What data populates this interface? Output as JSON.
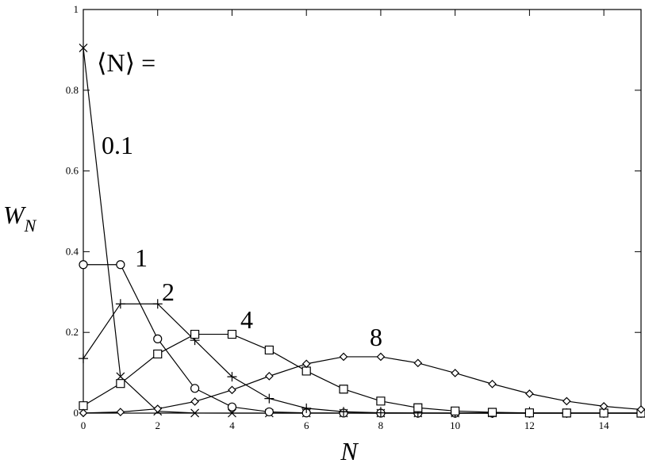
{
  "chart_data": {
    "type": "line",
    "ylabel": "W",
    "ylabel_sub": "N",
    "xlabel": "N",
    "annotation": "⟨N⟩ =",
    "x": [
      0,
      1,
      2,
      3,
      4,
      5,
      6,
      7,
      8,
      9,
      10,
      11,
      12,
      13,
      14,
      15
    ],
    "series": [
      {
        "name": "0.1",
        "color": "#000000",
        "marker": "cross",
        "values": [
          0.9048,
          0.0905,
          0.0045,
          0.0002,
          0,
          0,
          0,
          0,
          0,
          0,
          0,
          0,
          0,
          0,
          0,
          0
        ]
      },
      {
        "name": "1",
        "color": "#000000",
        "marker": "circle",
        "values": [
          0.3679,
          0.3679,
          0.1839,
          0.0613,
          0.0153,
          0.0031,
          0.0005,
          0.0001,
          0,
          0,
          0,
          0,
          0,
          0,
          0,
          0
        ]
      },
      {
        "name": "2",
        "color": "#000000",
        "marker": "plus",
        "values": [
          0.1353,
          0.2707,
          0.2707,
          0.1804,
          0.0902,
          0.0361,
          0.012,
          0.0034,
          0.0009,
          0.0002,
          0,
          0,
          0,
          0,
          0,
          0
        ]
      },
      {
        "name": "4",
        "color": "#000000",
        "marker": "square",
        "values": [
          0.0183,
          0.0733,
          0.1465,
          0.1954,
          0.1954,
          0.1563,
          0.1042,
          0.0595,
          0.0298,
          0.0132,
          0.0053,
          0.0019,
          0.0006,
          0.0002,
          0.0001,
          0
        ]
      },
      {
        "name": "8",
        "color": "#000000",
        "marker": "diamond",
        "values": [
          0.0003,
          0.0027,
          0.0107,
          0.0286,
          0.0573,
          0.0916,
          0.1221,
          0.1396,
          0.1396,
          0.1241,
          0.0993,
          0.0722,
          0.0481,
          0.0296,
          0.0169,
          0.009
        ]
      }
    ],
    "xlim": [
      0,
      15
    ],
    "ylim": [
      0,
      1
    ],
    "xticks": [
      0,
      2,
      4,
      6,
      8,
      10,
      12,
      14
    ],
    "yticks": [
      0,
      0.2,
      0.4,
      0.6,
      0.8,
      1
    ],
    "grid": false
  }
}
